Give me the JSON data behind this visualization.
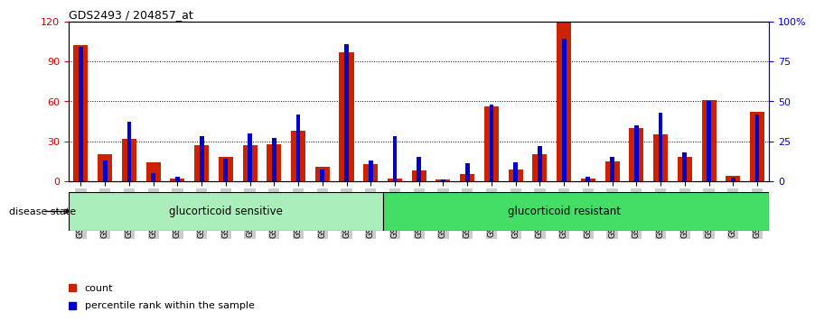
{
  "title": "GDS2493 / 204857_at",
  "samples": [
    "GSM135892",
    "GSM135893",
    "GSM135894",
    "GSM135945",
    "GSM135946",
    "GSM135947",
    "GSM135948",
    "GSM135949",
    "GSM135950",
    "GSM135951",
    "GSM135952",
    "GSM135953",
    "GSM135954",
    "GSM135955",
    "GSM135956",
    "GSM135957",
    "GSM135958",
    "GSM135959",
    "GSM135960",
    "GSM135961",
    "GSM135962",
    "GSM135963",
    "GSM135964",
    "GSM135965",
    "GSM135966",
    "GSM135967",
    "GSM135968",
    "GSM135969",
    "GSM135970"
  ],
  "count_values": [
    102,
    20,
    32,
    14,
    2,
    27,
    18,
    27,
    28,
    38,
    11,
    97,
    13,
    2,
    8,
    1,
    5,
    56,
    9,
    20,
    120,
    2,
    15,
    40,
    35,
    18,
    61,
    4,
    52
  ],
  "percentile_values": [
    84,
    13,
    37,
    5,
    3,
    28,
    14,
    30,
    27,
    42,
    7,
    86,
    13,
    28,
    15,
    1,
    11,
    48,
    12,
    22,
    89,
    3,
    15,
    35,
    43,
    18,
    50,
    2,
    42
  ],
  "group1_label": "glucorticoid sensitive",
  "group2_label": "glucorticoid resistant",
  "group1_count": 13,
  "group2_count": 16,
  "disease_state_label": "disease state",
  "left_axis_color": "#cc0000",
  "right_axis_color": "#0000cc",
  "bar_color_count": "#cc2200",
  "bar_color_pct": "#0000cc",
  "group1_color": "#aaeebb",
  "group2_color": "#44dd66",
  "legend_count_label": "count",
  "legend_pct_label": "percentile rank within the sample",
  "ylim_left": [
    0,
    120
  ],
  "ylim_right": [
    0,
    100
  ],
  "left_yticks": [
    0,
    30,
    60,
    90,
    120
  ],
  "right_yticks": [
    0,
    25,
    50,
    75,
    100
  ],
  "right_yticklabels": [
    "0",
    "25",
    "50",
    "75",
    "100%"
  ],
  "gridline_values": [
    30,
    60,
    90
  ],
  "count_bar_width": 0.6,
  "pct_bar_width": 0.18
}
